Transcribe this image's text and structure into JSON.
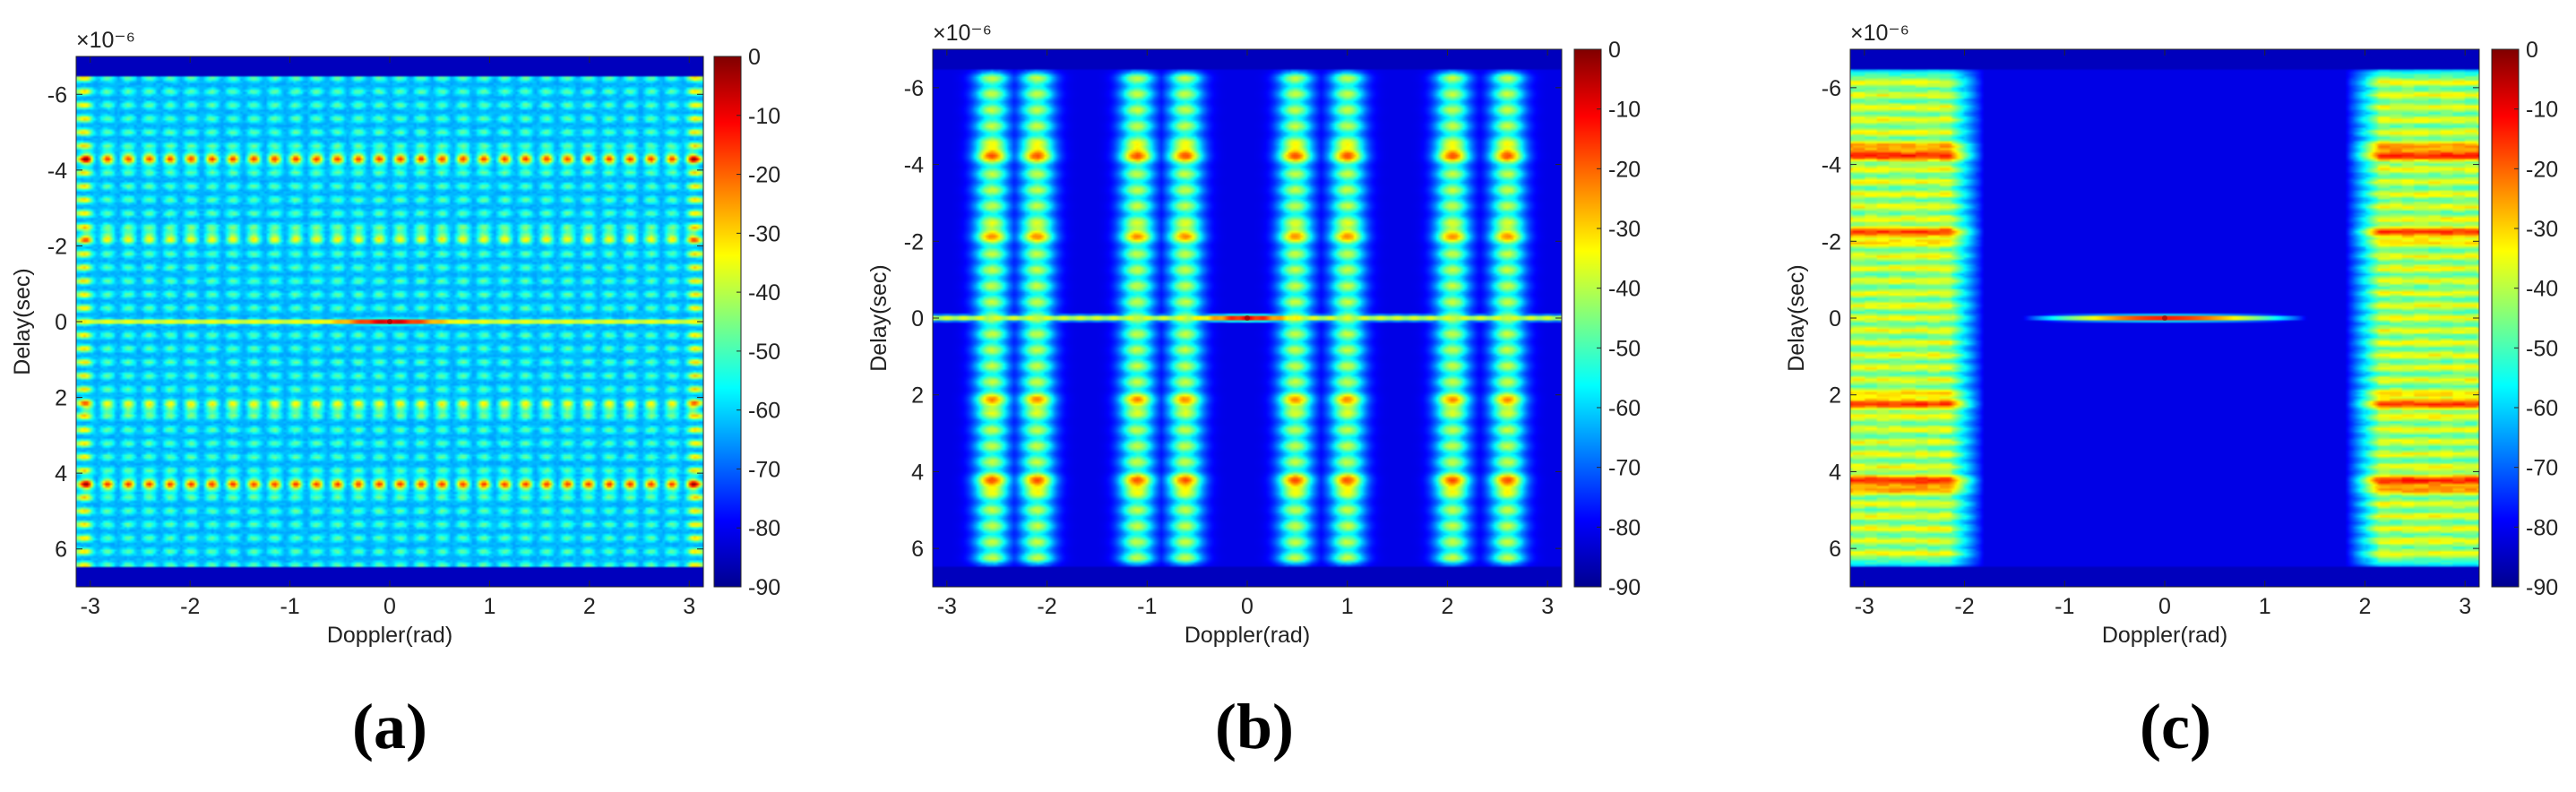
{
  "chart_data": [
    {
      "type": "heatmap",
      "panel": "(a)",
      "pattern": "full",
      "xlabel": "Doppler(rad)",
      "ylabel": "Delay(sec)",
      "y_scale_label": "×10⁻⁶",
      "xlim": [
        -3.14159,
        3.14159
      ],
      "ylim": [
        -7,
        7
      ],
      "data_extent": [
        -6.5,
        6.5
      ],
      "x_ticks": [
        -3,
        -2,
        -1,
        0,
        1,
        2,
        3
      ],
      "x_tick_labels": [
        "-3",
        "-2",
        "-1",
        "0",
        "1",
        "2",
        "3"
      ],
      "y_ticks": [
        -6,
        -4,
        -2,
        0,
        2,
        4,
        6
      ],
      "y_tick_labels": [
        "-6",
        "-4",
        "-2",
        "0",
        "2",
        "4",
        "6"
      ],
      "colorbar": {
        "range": [
          -90,
          0
        ],
        "ticks": [
          0,
          -10,
          -20,
          -30,
          -40,
          -50,
          -60,
          -70,
          -80,
          -90
        ],
        "tick_labels": [
          "0",
          "-10",
          "-20",
          "-30",
          "-40",
          "-50",
          "-60",
          "-70",
          "-80",
          "-90"
        ]
      },
      "doppler_band_count": 30,
      "peak": {
        "doppler": 0,
        "delay": 0,
        "value_db": 0
      },
      "floor_db": -90
    },
    {
      "type": "heatmap",
      "panel": "(b)",
      "pattern": "groups",
      "xlabel": "Doppler(rad)",
      "ylabel": "Delay(sec)",
      "y_scale_label": "×10⁻⁶",
      "xlim": [
        -3.14159,
        3.14159
      ],
      "ylim": [
        -7,
        7
      ],
      "data_extent": [
        -6.5,
        6.5
      ],
      "x_ticks": [
        -3,
        -2,
        -1,
        0,
        1,
        2,
        3
      ],
      "x_tick_labels": [
        "-3",
        "-2",
        "-1",
        "0",
        "1",
        "2",
        "3"
      ],
      "y_ticks": [
        -6,
        -4,
        -2,
        0,
        2,
        4,
        6
      ],
      "y_tick_labels": [
        "-6",
        "-4",
        "-2",
        "0",
        "2",
        "4",
        "6"
      ],
      "colorbar": {
        "range": [
          -90,
          0
        ],
        "ticks": [
          0,
          -10,
          -20,
          -30,
          -40,
          -50,
          -60,
          -70,
          -80,
          -90
        ],
        "tick_labels": [
          "0",
          "-10",
          "-20",
          "-30",
          "-40",
          "-50",
          "-60",
          "-70",
          "-80",
          "-90"
        ]
      },
      "doppler_group_centers": [
        -2.55,
        -2.1,
        -1.1,
        -0.62,
        0.48,
        1.0,
        2.05,
        2.6
      ],
      "peak": {
        "doppler": 0,
        "delay": 0,
        "value_db": 0
      },
      "floor_db": -90
    },
    {
      "type": "heatmap",
      "panel": "(c)",
      "pattern": "edges",
      "xlabel": "Doppler(rad)",
      "ylabel": "Delay(sec)",
      "y_scale_label": "×10⁻⁶",
      "xlim": [
        -3.14159,
        3.14159
      ],
      "ylim": [
        -7,
        7
      ],
      "data_extent": [
        -6.5,
        6.5
      ],
      "x_ticks": [
        -3,
        -2,
        -1,
        0,
        1,
        2,
        3
      ],
      "x_tick_labels": [
        "-3",
        "-2",
        "-1",
        "0",
        "1",
        "2",
        "3"
      ],
      "y_ticks": [
        -6,
        -4,
        -2,
        0,
        2,
        4,
        6
      ],
      "y_tick_labels": [
        "-6",
        "-4",
        "-2",
        "0",
        "2",
        "4",
        "6"
      ],
      "colorbar": {
        "range": [
          -90,
          0
        ],
        "ticks": [
          0,
          -10,
          -20,
          -30,
          -40,
          -50,
          -60,
          -70,
          -80,
          -90
        ],
        "tick_labels": [
          "0",
          "-10",
          "-20",
          "-30",
          "-40",
          "-50",
          "-60",
          "-70",
          "-80",
          "-90"
        ]
      },
      "edge_regions": [
        [
          -3.14159,
          -1.8
        ],
        [
          1.8,
          3.14159
        ]
      ],
      "central_ridge": {
        "doppler_range": [
          -1.5,
          1.5
        ],
        "delay": 0
      },
      "peak": {
        "doppler": 0,
        "delay": 0,
        "value_db": 0
      },
      "floor_db": -90
    }
  ],
  "captions": [
    "(a)",
    "(b)",
    "(c)"
  ]
}
